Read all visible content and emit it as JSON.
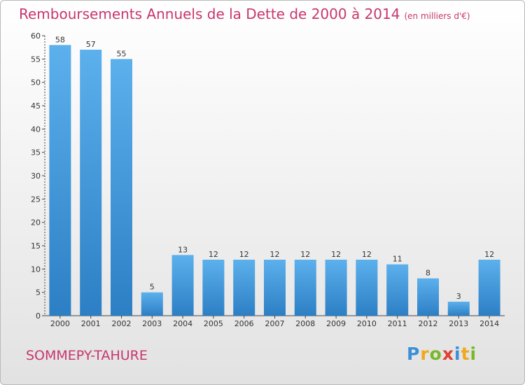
{
  "title": "Remboursements Annuels de la Dette de 2000 à 2014",
  "unit": "(en milliers d'€)",
  "commune": "SOMMEPY-TAHURE",
  "logo_letters": [
    "P",
    "r",
    "o",
    "x",
    "i",
    "t",
    "i"
  ],
  "logo_colors": [
    "#3b8fd8",
    "#f0a81c",
    "#79b829",
    "#e0402f",
    "#3b8fd8",
    "#f0a81c",
    "#79b829"
  ],
  "colors": {
    "title": "#c8366d",
    "bar_top": "#5cb0ec",
    "bar_bottom": "#2c7fc4",
    "axis": "#444444",
    "grid": "#444444"
  },
  "chart_data": {
    "type": "bar",
    "title": "Remboursements Annuels de la Dette de 2000 à 2014",
    "categories": [
      "2000",
      "2001",
      "2002",
      "2003",
      "2004",
      "2005",
      "2006",
      "2007",
      "2008",
      "2009",
      "2010",
      "2011",
      "2012",
      "2013",
      "2014"
    ],
    "values": [
      58,
      57,
      55,
      5,
      13,
      12,
      12,
      12,
      12,
      12,
      12,
      11,
      8,
      3,
      12
    ],
    "xlabel": "",
    "ylabel": "",
    "ylim": [
      0,
      60
    ],
    "yticks": [
      0,
      5,
      10,
      15,
      20,
      25,
      30,
      35,
      40,
      45,
      50,
      55,
      60
    ],
    "grid": false,
    "data_labels": true
  }
}
